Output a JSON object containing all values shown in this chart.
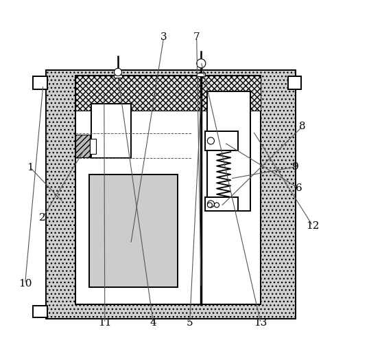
{
  "bg_color": "#ffffff",
  "line_color": "#000000",
  "fill_outer": "#c8c8c8",
  "fill_inner_top": "#e0e0e0",
  "fill_gray": "#cccccc",
  "label_fontsize": 11,
  "arrows": {
    "1": [
      0.15,
      0.42,
      0.055,
      0.52
    ],
    "2": [
      0.215,
      0.578,
      0.09,
      0.375
    ],
    "3": [
      0.345,
      0.3,
      0.44,
      0.895
    ],
    "4": [
      0.308,
      0.782,
      0.41,
      0.072
    ],
    "5": [
      0.548,
      0.725,
      0.515,
      0.072
    ],
    "6": [
      0.615,
      0.592,
      0.83,
      0.46
    ],
    "7": [
      0.548,
      0.175,
      0.535,
      0.895
    ],
    "8": [
      0.605,
      0.408,
      0.84,
      0.638
    ],
    "9": [
      0.632,
      0.488,
      0.82,
      0.522
    ],
    "10": [
      0.092,
      0.758,
      0.04,
      0.185
    ],
    "11": [
      0.268,
      0.738,
      0.27,
      0.072
    ],
    "12": [
      0.698,
      0.625,
      0.87,
      0.352
    ],
    "13": [
      0.548,
      0.825,
      0.72,
      0.072
    ]
  }
}
